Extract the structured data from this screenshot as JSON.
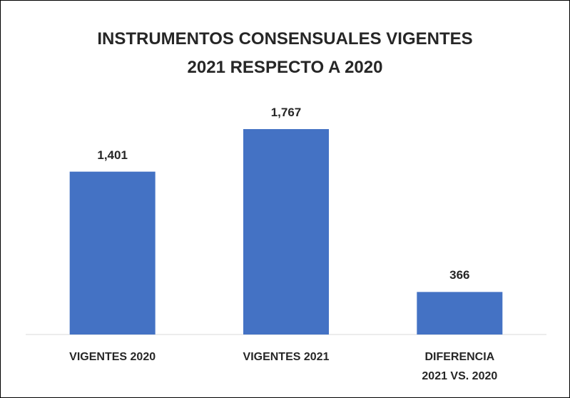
{
  "chart_data": {
    "type": "bar",
    "title": "INSTRUMENTOS CONSENSUALES VIGENTES\n2021 RESPECTO A 2020",
    "categories": [
      "VIGENTES 2020",
      "VIGENTES 2021",
      "DIFERENCIA\n2021 VS. 2020"
    ],
    "values": [
      1401,
      1767,
      366
    ],
    "value_labels": [
      "1,401",
      "1,767",
      "366"
    ],
    "color": "#4472c4"
  }
}
